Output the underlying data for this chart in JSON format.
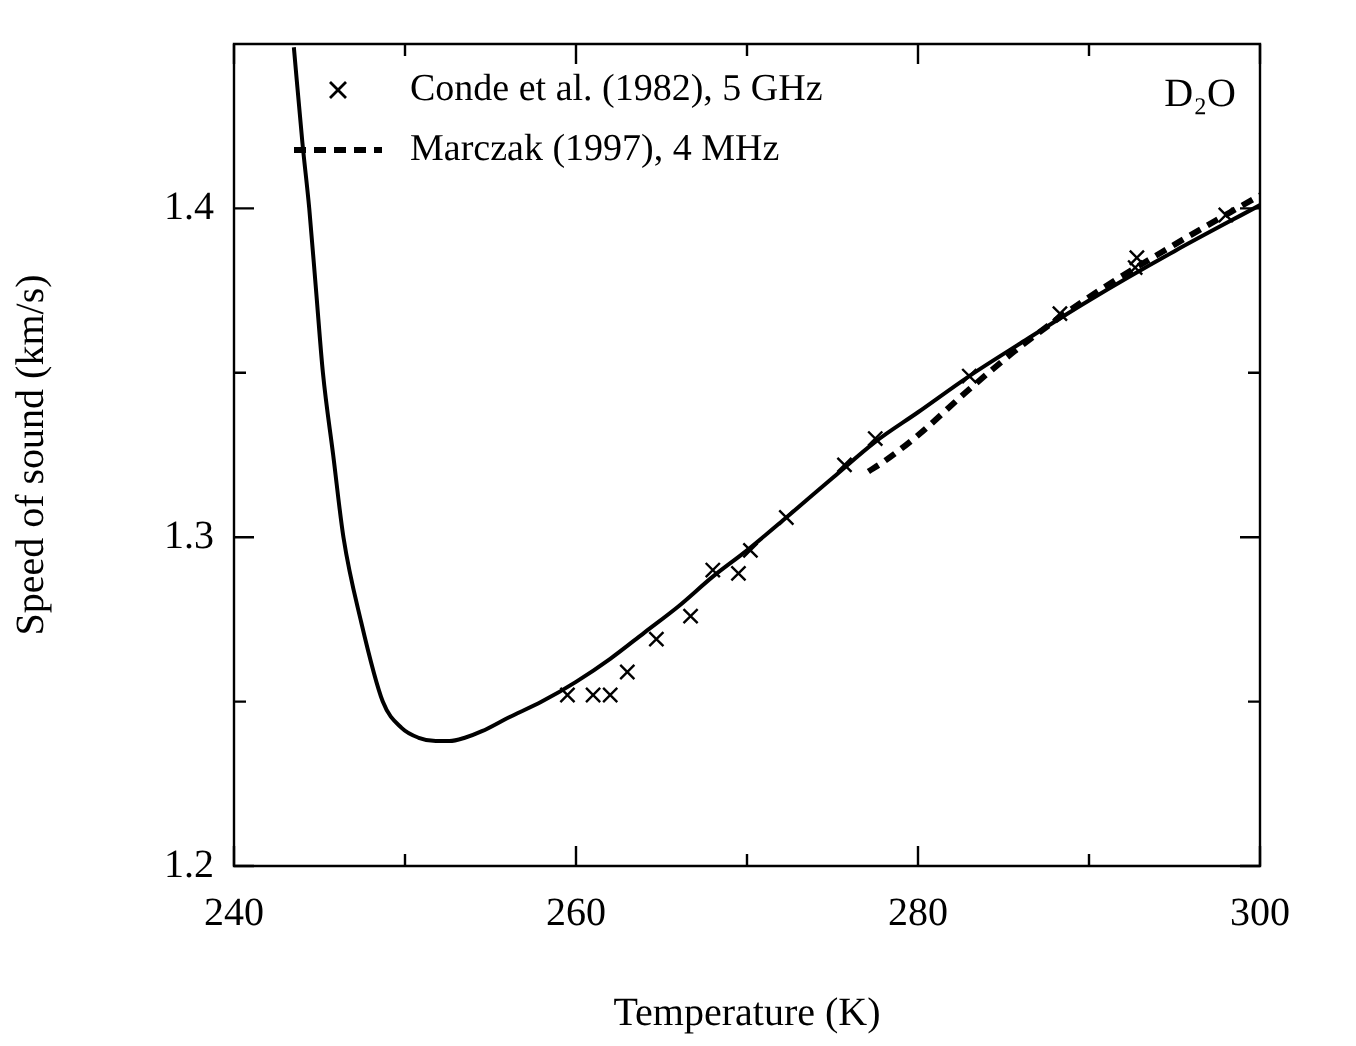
{
  "chart_data": {
    "type": "line",
    "xlabel": "Temperature (K)",
    "ylabel": "Speed of sound (km/s)",
    "annotations": [
      "D₂O"
    ],
    "xlim": [
      240,
      300
    ],
    "ylim": [
      1.2,
      1.45
    ],
    "xticks": [
      240,
      {
        "value": 250,
        "label": null
      },
      260,
      {
        "value": 270,
        "label": null
      },
      280,
      {
        "value": 290,
        "label": null
      },
      300
    ],
    "yticks": [
      1.2,
      {
        "value": 1.25,
        "label": null
      },
      1.3,
      {
        "value": 1.35,
        "label": null
      },
      1.4
    ],
    "grid": false,
    "legend": "top left",
    "series": [
      {
        "color": "#000000",
        "line_style": "solid",
        "marker": "none",
        "x": [
          243.5,
          244.0,
          244.4,
          244.8,
          245.2,
          245.8,
          246.4,
          247.4,
          248.7,
          249.8,
          250.8,
          251.8,
          252.6,
          253.5,
          254.5,
          256,
          258,
          260,
          262,
          264,
          266,
          268,
          270,
          272.3,
          275,
          277.5,
          280,
          283,
          286,
          290,
          295,
          300
        ],
        "values": [
          1.449,
          1.42,
          1.4,
          1.375,
          1.35,
          1.325,
          1.3,
          1.275,
          1.25,
          1.242,
          1.239,
          1.238,
          1.238,
          1.239,
          1.241,
          1.245,
          1.25,
          1.256,
          1.263,
          1.271,
          1.279,
          1.288,
          1.296,
          1.306,
          1.318,
          1.329,
          1.338,
          1.349,
          1.359,
          1.372,
          1.387,
          1.401
        ]
      },
      {
        "type": "scatter",
        "name": "Conde et al. (1982), 5 GHz",
        "color": "#000000",
        "marker": "cross",
        "x": [
          259.5,
          261,
          262,
          263,
          264.7,
          266.7,
          268,
          269.5,
          270.2,
          272.3,
          275.7,
          277.5,
          283,
          288.3,
          292.7,
          292.8,
          298
        ],
        "values": [
          1.252,
          1.252,
          1.252,
          1.259,
          1.269,
          1.276,
          1.29,
          1.289,
          1.296,
          1.306,
          1.322,
          1.33,
          1.349,
          1.368,
          1.382,
          1.385,
          1.398
        ]
      },
      {
        "name": "Marczak (1997), 4 MHz",
        "color": "#000000",
        "line_style": "dashed",
        "marker": "none",
        "x": [
          277.1,
          278,
          280,
          283,
          286,
          290,
          295,
          300
        ],
        "values": [
          1.32,
          1.323,
          1.331,
          1.345,
          1.358,
          1.373,
          1.389,
          1.404
        ]
      }
    ]
  }
}
